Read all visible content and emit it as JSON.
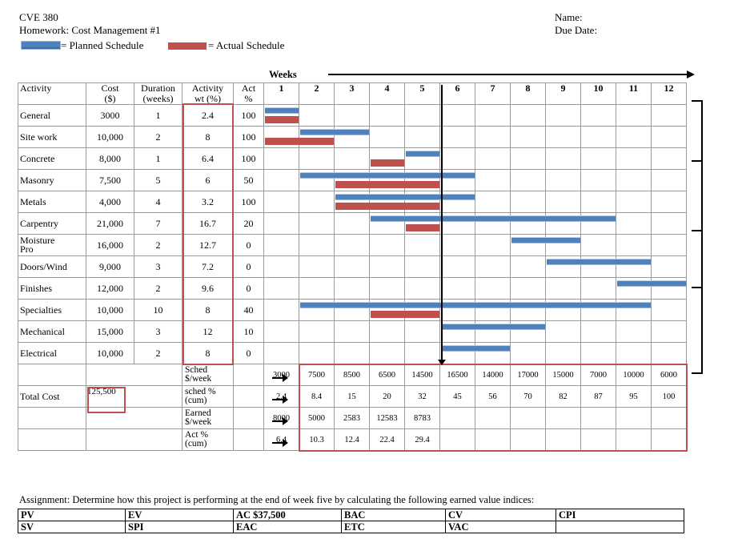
{
  "header": {
    "course": "CVE 380",
    "homework": "Homework: Cost Management #1",
    "name_label": "Name:",
    "due_label": "Due Date:"
  },
  "legend": {
    "planned": "= Planned Schedule",
    "actual": "= Actual Schedule"
  },
  "colors": {
    "planned": "#4f81bd",
    "actual": "#c0504d",
    "highlight": "#c0504d"
  },
  "weeks_label": "Weeks",
  "columns": {
    "activity": "Activity",
    "cost_1": "Cost",
    "cost_2": "($)",
    "duration_1": "Duration",
    "duration_2": "(weeks)",
    "actwt_1": "Activity",
    "actwt_2": "wt (%)",
    "act_1": "Act",
    "act_2": "%"
  },
  "weeks": [
    "1",
    "2",
    "3",
    "4",
    "5",
    "6",
    "7",
    "8",
    "9",
    "10",
    "11",
    "12"
  ],
  "activities": [
    {
      "name": "General",
      "cost": "3000",
      "duration": "1",
      "wt": "2.4",
      "act": "100",
      "planned": [
        1,
        1
      ],
      "actual": [
        1,
        1
      ]
    },
    {
      "name": "Site work",
      "cost": "10,000",
      "duration": "2",
      "wt": "8",
      "act": "100",
      "planned": [
        2,
        3
      ],
      "actual": [
        1,
        2
      ]
    },
    {
      "name": "Concrete",
      "cost": "8,000",
      "duration": "1",
      "wt": "6.4",
      "act": "100",
      "planned": [
        5,
        5
      ],
      "actual": [
        4,
        4
      ]
    },
    {
      "name": "Masonry",
      "cost": "7,500",
      "duration": "5",
      "wt": "6",
      "act": "50",
      "planned": [
        2,
        6
      ],
      "actual": [
        3,
        5
      ]
    },
    {
      "name": "Metals",
      "cost": "4,000",
      "duration": "4",
      "wt": "3.2",
      "act": "100",
      "planned": [
        3,
        6
      ],
      "actual": [
        3,
        5
      ]
    },
    {
      "name": "Carpentry",
      "cost": "21,000",
      "duration": "7",
      "wt": "16.7",
      "act": "20",
      "planned": [
        4,
        10
      ],
      "actual": [
        5,
        5
      ]
    },
    {
      "name": "Moisture Pro",
      "name_1": "Moisture",
      "name_2": "Pro",
      "cost": "16,000",
      "duration": "2",
      "wt": "12.7",
      "act": "0",
      "planned": [
        8,
        9
      ],
      "actual": null
    },
    {
      "name": "Doors/Wind",
      "cost": "9,000",
      "duration": "3",
      "wt": "7.2",
      "act": "0",
      "planned": [
        9,
        11
      ],
      "actual": null
    },
    {
      "name": "Finishes",
      "cost": "12,000",
      "duration": "2",
      "wt": "9.6",
      "act": "0",
      "planned": [
        11,
        12
      ],
      "actual": null
    },
    {
      "name": "Specialties",
      "cost": "10,000",
      "duration": "10",
      "wt": "8",
      "act": "40",
      "planned": [
        2,
        11
      ],
      "actual": [
        4,
        5
      ]
    },
    {
      "name": "Mechanical",
      "cost": "15,000",
      "duration": "3",
      "wt": "12",
      "act": "10",
      "planned": [
        6,
        8
      ],
      "actual": null
    },
    {
      "name": "Electrical",
      "cost": "10,000",
      "duration": "2",
      "wt": "8",
      "act": "0",
      "planned": [
        6,
        7
      ],
      "actual": null
    }
  ],
  "total": {
    "label": "Total Cost",
    "value": "125,500"
  },
  "summary_rows": [
    {
      "label_1": "Sched",
      "label_2": "$/week",
      "values": [
        "3000",
        "7500",
        "8500",
        "6500",
        "14500",
        "16500",
        "14000",
        "17000",
        "15000",
        "7000",
        "10000",
        "6000"
      ]
    },
    {
      "label_1": "sched %",
      "label_2": "(cum)",
      "values": [
        "2.4",
        "8.4",
        "15",
        "20",
        "32",
        "45",
        "56",
        "70",
        "82",
        "87",
        "95",
        "100"
      ]
    },
    {
      "label_1": "Earned",
      "label_2": "$/week",
      "values": [
        "8000",
        "5000",
        "2583",
        "12583",
        "8783",
        "",
        "",
        "",
        "",
        "",
        "",
        ""
      ]
    },
    {
      "label_1": "Act %",
      "label_2": "(cum)",
      "values": [
        "6.4",
        "10.3",
        "12.4",
        "22.4",
        "29.4",
        "",
        "",
        "",
        "",
        "",
        "",
        ""
      ]
    }
  ],
  "assignment": {
    "text": "Assignment: Determine how this project is performing at the end of week five by calculating the following earned value indices:",
    "row1": [
      "PV",
      "EV",
      "AC   $37,500",
      "BAC",
      "CV",
      "CPI"
    ],
    "row2": [
      "SV",
      "SPI",
      "EAC",
      "ETC",
      "VAC",
      ""
    ]
  }
}
